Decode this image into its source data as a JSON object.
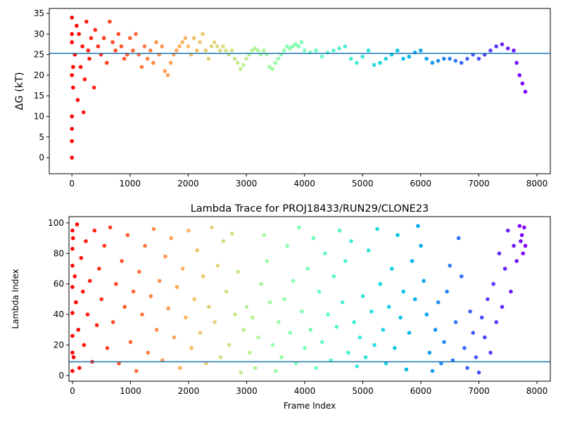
{
  "chart_data": [
    {
      "type": "scatter",
      "ylabel": "ΔG (kT)",
      "colormap": "rainbow_r",
      "x": [
        0,
        0,
        0,
        0,
        0,
        0,
        0,
        0,
        20,
        20,
        50,
        80,
        100,
        120,
        150,
        180,
        200,
        220,
        250,
        280,
        300,
        330,
        380,
        400,
        450,
        500,
        550,
        600,
        650,
        700,
        750,
        800,
        850,
        900,
        950,
        1000,
        1050,
        1100,
        1150,
        1200,
        1250,
        1300,
        1350,
        1400,
        1450,
        1500,
        1550,
        1600,
        1650,
        1700,
        1750,
        1800,
        1850,
        1900,
        1950,
        2000,
        2050,
        2100,
        2150,
        2200,
        2250,
        2300,
        2350,
        2400,
        2450,
        2500,
        2550,
        2600,
        2650,
        2700,
        2750,
        2800,
        2850,
        2900,
        2950,
        3000,
        3050,
        3100,
        3150,
        3200,
        3250,
        3300,
        3350,
        3400,
        3450,
        3500,
        3550,
        3600,
        3650,
        3700,
        3750,
        3800,
        3850,
        3900,
        3950,
        4000,
        4100,
        4200,
        4300,
        4400,
        4500,
        4600,
        4700,
        4800,
        4900,
        5000,
        5100,
        5200,
        5300,
        5400,
        5500,
        5600,
        5700,
        5800,
        5900,
        6000,
        6100,
        6200,
        6300,
        6400,
        6500,
        6600,
        6700,
        6800,
        6900,
        7000,
        7100,
        7200,
        7300,
        7400,
        7500,
        7600,
        7650,
        7700,
        7750,
        7800
      ],
      "values": [
        0,
        4,
        7,
        10,
        20,
        28,
        30,
        34,
        22,
        17,
        25,
        32,
        14,
        30,
        22,
        27,
        11,
        19,
        33,
        26,
        24,
        29,
        17,
        31,
        27,
        25,
        29,
        23,
        33,
        28,
        26,
        30,
        27,
        24,
        25,
        29,
        26,
        30,
        25,
        22,
        27,
        24,
        26,
        23,
        28,
        25,
        27,
        21,
        20,
        23,
        25,
        26,
        27,
        28,
        29,
        27,
        25,
        29,
        26,
        28,
        30,
        26,
        24,
        27,
        28,
        27,
        26,
        27,
        26,
        25,
        26,
        24,
        23,
        21.5,
        22.5,
        24,
        25,
        26,
        26.5,
        26,
        25,
        26,
        25,
        22,
        21.5,
        23,
        24,
        25,
        26,
        27,
        26.5,
        27,
        27.5,
        27,
        28,
        26,
        25.5,
        26,
        24.5,
        25.5,
        26,
        26.5,
        27,
        24,
        23,
        24.5,
        26,
        22.5,
        23,
        24,
        25,
        26,
        24,
        24.5,
        25.5,
        26,
        24,
        23,
        23.5,
        24,
        24,
        23.5,
        23,
        24,
        25,
        24,
        25,
        26,
        27,
        27.5,
        26.5,
        26,
        23,
        20,
        18,
        16
      ],
      "hline": {
        "value": 25.3,
        "color": "#1f77b4"
      },
      "xlim": [
        -390,
        8230
      ],
      "ylim": [
        -3.9,
        36.2
      ],
      "xticks": [
        0,
        1000,
        2000,
        3000,
        4000,
        5000,
        6000,
        7000,
        8000
      ],
      "yticks": [
        0,
        5,
        10,
        15,
        20,
        25,
        30,
        35
      ]
    },
    {
      "type": "scatter",
      "title": "Lambda Trace for PROJ18433/RUN29/CLONE23",
      "xlabel": "Frame Index",
      "ylabel": "Lambda Index",
      "colormap": "rainbow_r",
      "x": [
        0,
        0,
        0,
        0,
        0,
        0,
        0,
        0,
        10,
        20,
        40,
        60,
        80,
        100,
        120,
        150,
        180,
        200,
        230,
        260,
        300,
        340,
        380,
        420,
        460,
        500,
        550,
        600,
        650,
        700,
        750,
        800,
        850,
        900,
        950,
        1000,
        1050,
        1100,
        1150,
        1200,
        1250,
        1300,
        1350,
        1400,
        1450,
        1500,
        1550,
        1600,
        1650,
        1700,
        1750,
        1800,
        1850,
        1900,
        1950,
        2000,
        2050,
        2100,
        2150,
        2200,
        2250,
        2300,
        2350,
        2400,
        2450,
        2500,
        2550,
        2600,
        2650,
        2700,
        2750,
        2800,
        2850,
        2900,
        2950,
        3000,
        3050,
        3100,
        3150,
        3200,
        3250,
        3300,
        3350,
        3400,
        3450,
        3500,
        3550,
        3600,
        3650,
        3700,
        3750,
        3800,
        3850,
        3900,
        3950,
        4000,
        4050,
        4100,
        4150,
        4200,
        4250,
        4300,
        4350,
        4400,
        4450,
        4500,
        4550,
        4600,
        4650,
        4700,
        4750,
        4800,
        4850,
        4900,
        4950,
        5000,
        5050,
        5100,
        5150,
        5200,
        5250,
        5300,
        5350,
        5400,
        5450,
        5500,
        5550,
        5600,
        5650,
        5700,
        5750,
        5800,
        5850,
        5900,
        5950,
        6000,
        6050,
        6100,
        6150,
        6200,
        6250,
        6300,
        6350,
        6400,
        6450,
        6500,
        6550,
        6600,
        6650,
        6700,
        6750,
        6800,
        6850,
        6900,
        6950,
        7000,
        7050,
        7100,
        7150,
        7200,
        7250,
        7300,
        7350,
        7400,
        7450,
        7500,
        7550,
        7600,
        7650,
        7700,
        7720,
        7740,
        7760,
        7780,
        7800
      ],
      "values": [
        95,
        83,
        72,
        58,
        41,
        26,
        15,
        3,
        90,
        12,
        65,
        48,
        99,
        30,
        5,
        77,
        55,
        20,
        88,
        40,
        62,
        9,
        95,
        33,
        70,
        50,
        85,
        18,
        97,
        35,
        60,
        8,
        75,
        45,
        92,
        22,
        55,
        3,
        68,
        40,
        85,
        15,
        52,
        96,
        30,
        62,
        10,
        78,
        44,
        90,
        25,
        58,
        5,
        70,
        38,
        95,
        18,
        50,
        82,
        28,
        65,
        8,
        45,
        97,
        35,
        72,
        12,
        88,
        55,
        20,
        93,
        40,
        68,
        2,
        30,
        45,
        15,
        38,
        5,
        25,
        60,
        92,
        75,
        48,
        20,
        3,
        35,
        12,
        50,
        85,
        28,
        62,
        8,
        97,
        42,
        18,
        70,
        30,
        90,
        5,
        55,
        22,
        80,
        40,
        10,
        65,
        32,
        95,
        48,
        75,
        15,
        88,
        35,
        6,
        25,
        52,
        12,
        82,
        42,
        20,
        96,
        60,
        30,
        8,
        45,
        70,
        18,
        92,
        38,
        55,
        4,
        28,
        75,
        50,
        98,
        85,
        62,
        40,
        15,
        3,
        30,
        48,
        8,
        22,
        55,
        72,
        10,
        35,
        90,
        65,
        18,
        5,
        42,
        28,
        12,
        2,
        38,
        25,
        50,
        15,
        60,
        35,
        80,
        45,
        70,
        95,
        55,
        85,
        75,
        98,
        88,
        92,
        80,
        97,
        85
      ],
      "hline": {
        "value": 9,
        "color": "#1f77b4"
      },
      "xlim": [
        -60,
        8230
      ],
      "ylim": [
        -3.7,
        104.1
      ],
      "xticks": [
        0,
        1000,
        2000,
        3000,
        4000,
        5000,
        6000,
        7000,
        8000
      ],
      "yticks": [
        0,
        20,
        40,
        60,
        80,
        100
      ]
    }
  ]
}
